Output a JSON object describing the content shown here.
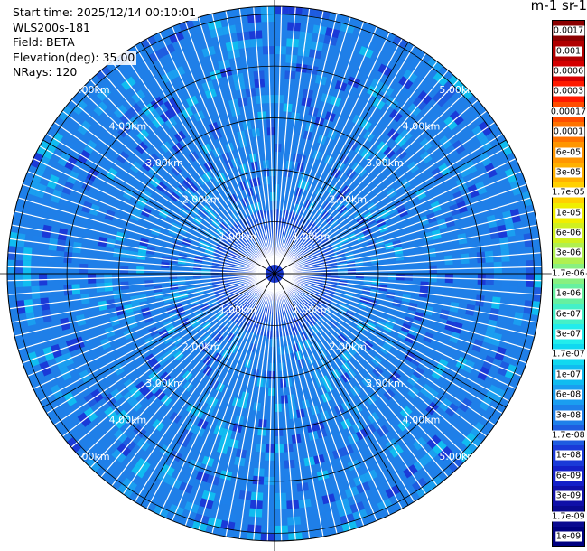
{
  "header": {
    "start_time": "Start time: 2025/12/14 00:10:01",
    "instrument": "WLS200s-181",
    "field": "Field: BETA",
    "elevation": "Elevation(deg): 35.00",
    "nrays": "NRays: 120"
  },
  "colorbar": {
    "title": "m-1 sr-1",
    "labels": [
      "0.0017",
      "0.001",
      "0.0006",
      "0.0003",
      "0.00017",
      "0.0001",
      "6e-05",
      "3e-05",
      "1.7e-05",
      "1e-05",
      "6e-06",
      "3e-06",
      "1.7e-06",
      "1e-06",
      "6e-07",
      "3e-07",
      "1.7e-07",
      "1e-07",
      "6e-08",
      "3e-08",
      "1.7e-08",
      "1e-08",
      "6e-09",
      "3e-09",
      "1.7e-09",
      "1e-09"
    ],
    "colors": [
      "#8b0000",
      "#b00000",
      "#d40000",
      "#ff1a00",
      "#ff4d00",
      "#ff7300",
      "#ff9500",
      "#ffb000",
      "#ffd000",
      "#f0ee00",
      "#d0f020",
      "#b0f050",
      "#88f080",
      "#66f0a0",
      "#44f0c8",
      "#22ecec",
      "#10d8f0",
      "#10bcf0",
      "#1a9ef0",
      "#1e80ea",
      "#1e5ce0",
      "#1a3ad8",
      "#1420c8",
      "#1010a8",
      "#0a0a90",
      "#000080"
    ]
  },
  "chart_data": {
    "type": "heatmap",
    "projection": "polar",
    "title": "",
    "field": "BETA",
    "units": "m-1 sr-1",
    "elevation_deg": 35.0,
    "n_rays": 120,
    "azimuth_range_deg": [
      0,
      360
    ],
    "range_rings_km": [
      1,
      2,
      3,
      4,
      5
    ],
    "range_ring_labels": [
      "1.00km",
      "2.00km",
      "3.00km",
      "4.00km",
      "5.00km"
    ],
    "max_range_km": 5.15,
    "color_scale": "log",
    "color_range": [
      1e-09,
      0.0017
    ],
    "dominant_value_range": [
      1e-08,
      6e-08
    ],
    "grid": true
  }
}
